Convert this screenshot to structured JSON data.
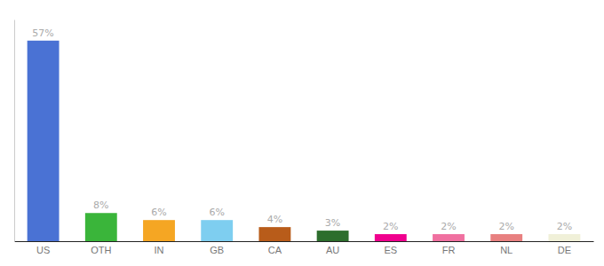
{
  "chart_data": {
    "type": "bar",
    "categories": [
      "US",
      "OTH",
      "IN",
      "GB",
      "CA",
      "AU",
      "ES",
      "FR",
      "NL",
      "DE"
    ],
    "values": [
      57,
      8,
      6,
      6,
      4,
      3,
      2,
      2,
      2,
      2
    ],
    "value_labels": [
      "57%",
      "8%",
      "6%",
      "6%",
      "4%",
      "3%",
      "2%",
      "2%",
      "2%",
      "2%"
    ],
    "colors": [
      "#4a72d4",
      "#3ab53a",
      "#f5a623",
      "#7ecef0",
      "#b85c1a",
      "#2d6e2d",
      "#f0008e",
      "#f070a0",
      "#e88080",
      "#f0f0d8"
    ],
    "ylim": [
      0,
      63
    ],
    "grid": false,
    "data_labels": true,
    "tick_labels": "x"
  }
}
